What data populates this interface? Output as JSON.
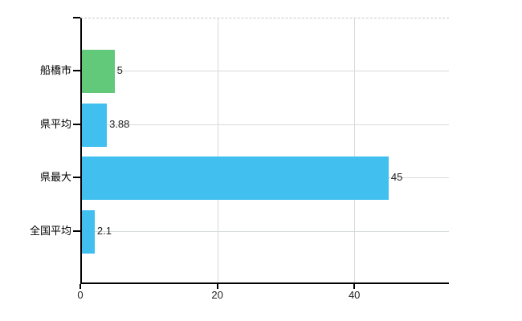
{
  "chart_data": {
    "type": "bar",
    "orientation": "horizontal",
    "title": "",
    "xlabel": "",
    "ylabel": "",
    "categories": [
      "船橋市",
      "県平均",
      "県最大",
      "全国平均"
    ],
    "values": [
      5,
      3.88,
      45,
      2.1
    ],
    "value_labels": [
      "5",
      "3.88",
      "45",
      "2.1"
    ],
    "bar_colors": [
      "#62c87a",
      "#41c0f0",
      "#41c0f0",
      "#41c0f0"
    ],
    "xticks": [
      0,
      20,
      40
    ],
    "xtick_labels": [
      "0",
      "20",
      "40"
    ],
    "xlim": [
      0,
      53.8
    ],
    "grid": true,
    "legend": "none",
    "colors": {
      "highlight_bar": "#62c87a",
      "default_bar": "#41c0f0",
      "axis": "#000000",
      "gridline": "#d9d9d9",
      "row_gridline": "#d7ddd7",
      "text": "#222222"
    }
  }
}
